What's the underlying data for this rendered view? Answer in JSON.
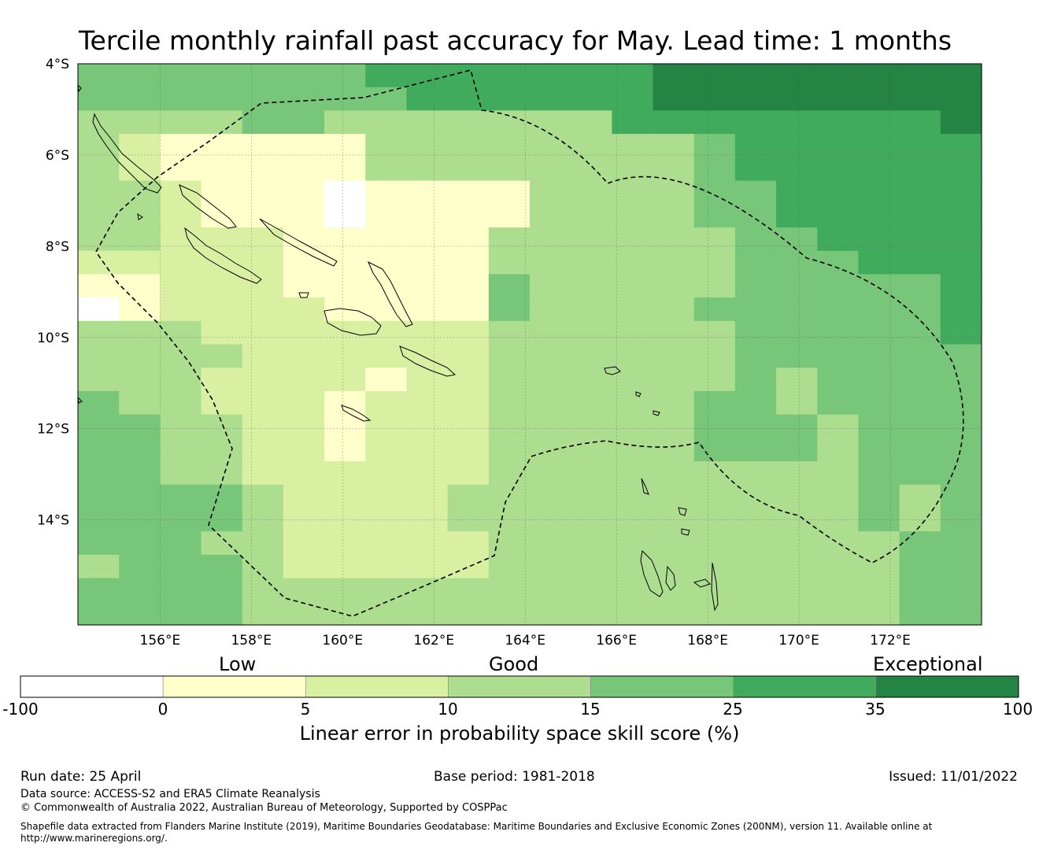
{
  "title": "Tercile monthly rainfall past accuracy for May. Lead time: 1 months",
  "map": {
    "lat_labels": [
      "4°S",
      "6°S",
      "8°S",
      "10°S",
      "12°S",
      "14°S"
    ],
    "lon_labels": [
      "156°E",
      "158°E",
      "160°E",
      "162°E",
      "164°E",
      "166°E",
      "168°E",
      "170°E",
      "172°E"
    ],
    "lon_range": [
      154.2,
      174.0
    ],
    "lat_range": [
      -16.3,
      -4.0
    ],
    "grid_lines": true,
    "region_outline": "dashed EEZ boundary",
    "skill_grid_cell_deg": 0.833,
    "skill_grid_categories": [
      "4444444555555566666666",
      "4444444455555566666666",
      "3333443333333555555556",
      "3211111333333334555555",
      "3211111333333334555555",
      "3321110111133334455555",
      "3321110111133334455555",
      "3322211111333333445555",
      "2222211111333333444555",
      "1122211111433333444445",
      "0122221111433334444445",
      "3332222222333333444445",
      "3333222222333333444444",
      "3332222122333333434444",
      "4332221222333334434444",
      "4433221222333334443444",
      "4433221222333334443444",
      "4433222222333333333444",
      "4444322223333333333434",
      "4444322223333333333434",
      "4443322222333333333344",
      "3444322222333333333344",
      "4444333333333333333344",
      "4444333333333333333344"
    ]
  },
  "colorbar": {
    "words": [
      "Low",
      "Good",
      "Exceptional"
    ],
    "ticks": [
      "-100",
      "0",
      "5",
      "10",
      "15",
      "25",
      "35",
      "100"
    ],
    "colors": [
      "#ffffff",
      "#ffffcc",
      "#d9f0a3",
      "#addd8e",
      "#78c679",
      "#41ab5d",
      "#238443"
    ],
    "label": "Linear error in probability space skill score (%)"
  },
  "footer": {
    "run_date": "Run date: 25 April",
    "base_period": "Base period: 1981-2018",
    "issued": "Issued: 11/01/2022",
    "data_source": "Data source: ACCESS-S2 and ERA5 Climate Reanalysis",
    "copyright": "© Commonwealth of Australia 2022, Australian Bureau of Meteorology, Supported by COSPPac",
    "shapefile_line1": "Shapefile data extracted from Flanders Marine Institute (2019), Maritime Boundaries Geodatabase: Maritime Boundaries and Exclusive Economic Zones (200NM), version 11. Available online at",
    "shapefile_line2": "http://www.marineregions.org/."
  }
}
